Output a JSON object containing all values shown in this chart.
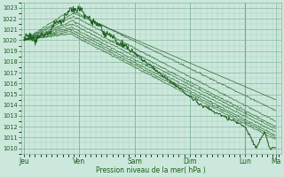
{
  "title": "",
  "xlabel": "Pression niveau de la mer( hPa )",
  "ylabel": "",
  "background_color": "#cce8dc",
  "plot_bg_color": "#cce8dc",
  "grid_minor_color": "#aacfbe",
  "grid_major_color": "#88b8a0",
  "line_color": "#1a5c1a",
  "ylim": [
    1009.5,
    1023.5
  ],
  "yticks": [
    1010,
    1011,
    1012,
    1013,
    1014,
    1015,
    1016,
    1017,
    1018,
    1019,
    1020,
    1021,
    1022,
    1023
  ],
  "xtick_labels": [
    "Jeu",
    "Ven",
    "Sam",
    "Dim",
    "Lun",
    "Ma"
  ],
  "xtick_positions": [
    0,
    1,
    2,
    3,
    4,
    4.55
  ],
  "xlim": [
    -0.05,
    4.65
  ]
}
